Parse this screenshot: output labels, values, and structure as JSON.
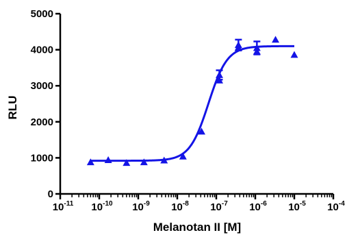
{
  "chart_data": {
    "type": "scatter",
    "title": "",
    "xlabel": "Melanotan II [M]",
    "ylabel": "RLU",
    "x_scale": "log",
    "xlim": [
      1e-11,
      0.0001
    ],
    "ylim": [
      0,
      5000
    ],
    "x_ticks": [
      {
        "value": 1e-11,
        "base": "10",
        "exp": "-11"
      },
      {
        "value": 1e-10,
        "base": "10",
        "exp": "-10"
      },
      {
        "value": 1e-09,
        "base": "10",
        "exp": "-9"
      },
      {
        "value": 1e-08,
        "base": "10",
        "exp": "-8"
      },
      {
        "value": 1e-07,
        "base": "10",
        "exp": "-7"
      },
      {
        "value": 1e-06,
        "base": "10",
        "exp": "-6"
      },
      {
        "value": 1e-05,
        "base": "10",
        "exp": "-5"
      },
      {
        "value": 0.0001,
        "base": "10",
        "exp": "-4"
      }
    ],
    "y_ticks": [
      {
        "value": 0,
        "label": "0"
      },
      {
        "value": 1000,
        "label": "1000"
      },
      {
        "value": 2000,
        "label": "2000"
      },
      {
        "value": 3000,
        "label": "3000"
      },
      {
        "value": 4000,
        "label": "4000"
      },
      {
        "value": 5000,
        "label": "5000"
      }
    ],
    "grid": false,
    "color": "#1414e6",
    "marker": "triangle",
    "points": [
      {
        "x": 6e-11,
        "y": 880
      },
      {
        "x": 1.7e-10,
        "y": 940
      },
      {
        "x": 5e-10,
        "y": 860
      },
      {
        "x": 1.4e-09,
        "y": 880
      },
      {
        "x": 4.6e-09,
        "y": 930
      },
      {
        "x": 1.4e-08,
        "y": 1040
      },
      {
        "x": 4.2e-08,
        "y": 1730
      },
      {
        "x": 1.2e-07,
        "y": 3300,
        "err": 130
      },
      {
        "x": 1.2e-07,
        "y": 3150
      },
      {
        "x": 3.7e-07,
        "y": 4130,
        "err": 150
      },
      {
        "x": 3.7e-07,
        "y": 4060
      },
      {
        "x": 1.1e-06,
        "y": 4050,
        "err": 180
      },
      {
        "x": 1.1e-06,
        "y": 3950
      },
      {
        "x": 3.3e-06,
        "y": 4280
      },
      {
        "x": 1e-05,
        "y": 3860
      }
    ],
    "fit": {
      "bottom": 920,
      "top": 4100,
      "log_ec50": -7.2,
      "hill": 1.8
    }
  }
}
